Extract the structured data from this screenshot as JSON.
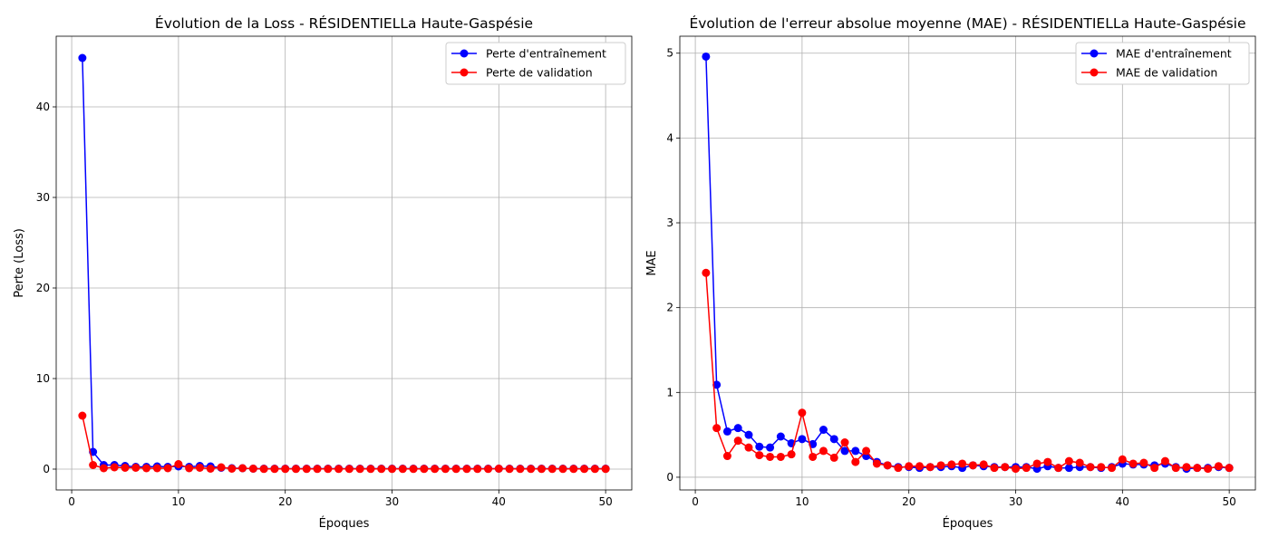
{
  "chart_data": [
    {
      "type": "line",
      "title": "Évolution de la Loss - RÉSIDENTIELLa Haute-Gaspésie",
      "xlabel": "Époques",
      "ylabel": "Perte (Loss)",
      "xlim": [
        -1.45,
        52.45
      ],
      "ylim": [
        -2.3,
        47.8
      ],
      "xticks": [
        0,
        10,
        20,
        30,
        40,
        50
      ],
      "yticks": [
        0,
        10,
        20,
        30,
        40
      ],
      "grid": true,
      "legend_position": "top-right",
      "x": [
        1,
        2,
        3,
        4,
        5,
        6,
        7,
        8,
        9,
        10,
        11,
        12,
        13,
        14,
        15,
        16,
        17,
        18,
        19,
        20,
        21,
        22,
        23,
        24,
        25,
        26,
        27,
        28,
        29,
        30,
        31,
        32,
        33,
        34,
        35,
        36,
        37,
        38,
        39,
        40,
        41,
        42,
        43,
        44,
        45,
        46,
        47,
        48,
        49,
        50
      ],
      "series": [
        {
          "name": "Perte d'entraînement",
          "color": "#0000ff",
          "values": [
            45.4,
            1.9,
            0.45,
            0.45,
            0.35,
            0.25,
            0.25,
            0.3,
            0.25,
            0.3,
            0.25,
            0.35,
            0.3,
            0.15,
            0.1,
            0.1,
            0.05,
            0.05,
            0.05,
            0.05,
            0.05,
            0.05,
            0.05,
            0.05,
            0.05,
            0.05,
            0.05,
            0.05,
            0.05,
            0.05,
            0.05,
            0.05,
            0.05,
            0.05,
            0.05,
            0.05,
            0.05,
            0.05,
            0.05,
            0.05,
            0.05,
            0.05,
            0.05,
            0.05,
            0.05,
            0.05,
            0.05,
            0.05,
            0.05,
            0.05
          ]
        },
        {
          "name": "Perte de validation",
          "color": "#ff0000",
          "values": [
            5.9,
            0.45,
            0.1,
            0.2,
            0.15,
            0.15,
            0.1,
            0.1,
            0.1,
            0.55,
            0.1,
            0.15,
            0.05,
            0.2,
            0.05,
            0.1,
            0.05,
            0.02,
            0.02,
            0.02,
            0.02,
            0.02,
            0.02,
            0.02,
            0.02,
            0.02,
            0.02,
            0.02,
            0.02,
            0.02,
            0.02,
            0.02,
            0.02,
            0.02,
            0.02,
            0.02,
            0.02,
            0.02,
            0.02,
            0.05,
            0.02,
            0.02,
            0.02,
            0.02,
            0.02,
            0.02,
            0.02,
            0.02,
            0.02,
            0.02
          ]
        }
      ]
    },
    {
      "type": "line",
      "title": "Évolution de l'erreur absolue moyenne (MAE) - RÉSIDENTIELLa Haute-Gaspésie",
      "xlabel": "Époques",
      "ylabel": "MAE",
      "xlim": [
        -1.45,
        52.45
      ],
      "ylim": [
        -0.15,
        5.2
      ],
      "xticks": [
        0,
        10,
        20,
        30,
        40,
        50
      ],
      "yticks": [
        0,
        1,
        2,
        3,
        4,
        5
      ],
      "grid": true,
      "legend_position": "top-right",
      "x": [
        1,
        2,
        3,
        4,
        5,
        6,
        7,
        8,
        9,
        10,
        11,
        12,
        13,
        14,
        15,
        16,
        17,
        18,
        19,
        20,
        21,
        22,
        23,
        24,
        25,
        26,
        27,
        28,
        29,
        30,
        31,
        32,
        33,
        34,
        35,
        36,
        37,
        38,
        39,
        40,
        41,
        42,
        43,
        44,
        45,
        46,
        47,
        48,
        49,
        50
      ],
      "series": [
        {
          "name": "MAE d'entraînement",
          "color": "#0000ff",
          "values": [
            4.96,
            1.09,
            0.54,
            0.58,
            0.5,
            0.36,
            0.35,
            0.48,
            0.4,
            0.45,
            0.39,
            0.56,
            0.45,
            0.31,
            0.31,
            0.25,
            0.18,
            0.14,
            0.12,
            0.12,
            0.11,
            0.12,
            0.12,
            0.13,
            0.11,
            0.14,
            0.13,
            0.12,
            0.12,
            0.12,
            0.12,
            0.1,
            0.13,
            0.11,
            0.11,
            0.12,
            0.12,
            0.11,
            0.12,
            0.16,
            0.15,
            0.15,
            0.14,
            0.16,
            0.12,
            0.1,
            0.11,
            0.11,
            0.12,
            0.11
          ]
        },
        {
          "name": "MAE de validation",
          "color": "#ff0000",
          "values": [
            2.41,
            0.58,
            0.25,
            0.43,
            0.35,
            0.26,
            0.24,
            0.24,
            0.27,
            0.76,
            0.24,
            0.31,
            0.23,
            0.41,
            0.18,
            0.31,
            0.16,
            0.14,
            0.11,
            0.13,
            0.13,
            0.12,
            0.14,
            0.15,
            0.16,
            0.14,
            0.15,
            0.11,
            0.12,
            0.1,
            0.11,
            0.16,
            0.18,
            0.11,
            0.19,
            0.17,
            0.12,
            0.12,
            0.11,
            0.21,
            0.16,
            0.17,
            0.11,
            0.19,
            0.11,
            0.12,
            0.11,
            0.1,
            0.13,
            0.11
          ]
        }
      ]
    }
  ]
}
